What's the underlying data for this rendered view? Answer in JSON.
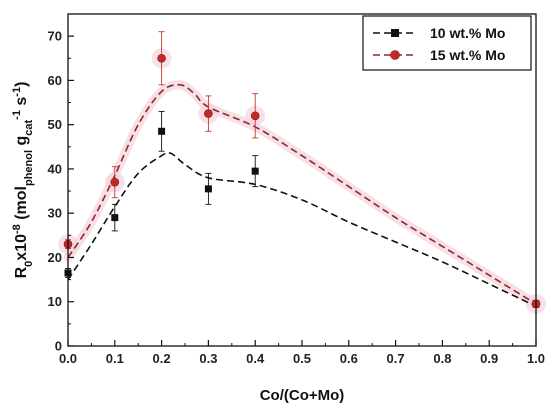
{
  "chart_data": {
    "type": "scatter",
    "xlabel": "Co/(Co+Mo)",
    "ylabel": {
      "parts": [
        {
          "text": "R",
          "shift": "base"
        },
        {
          "text": "0",
          "shift": "sub"
        },
        {
          "text": "x10",
          "shift": "base"
        },
        {
          "text": "-8",
          "shift": "sup"
        },
        {
          "text": " (mol",
          "shift": "base"
        },
        {
          "text": "phenol",
          "shift": "sub"
        },
        {
          "text": " g",
          "shift": "base"
        },
        {
          "text": "cat",
          "shift": "sub"
        },
        {
          "text": "-1",
          "shift": "sup"
        },
        {
          "text": " s",
          "shift": "base"
        },
        {
          "text": "-1",
          "shift": "sup"
        },
        {
          "text": ")",
          "shift": "base"
        }
      ]
    },
    "xlim": [
      0.0,
      1.0
    ],
    "ylim": [
      0,
      75
    ],
    "xticks": [
      0.0,
      0.1,
      0.2,
      0.3,
      0.4,
      0.5,
      0.6,
      0.7,
      0.8,
      0.9,
      1.0
    ],
    "yticks": [
      0,
      10,
      20,
      30,
      40,
      50,
      60,
      70
    ],
    "grid": false,
    "legend_position": "top-right",
    "series": [
      {
        "name": "10 wt.% Mo",
        "marker": "square",
        "color": "#111111",
        "line_color": "#111111",
        "points": [
          {
            "x": 0.0,
            "y": 16.5,
            "err": 1.0
          },
          {
            "x": 0.1,
            "y": 29.0,
            "err": 3.0
          },
          {
            "x": 0.2,
            "y": 48.5,
            "err": 4.5
          },
          {
            "x": 0.3,
            "y": 35.5,
            "err": 3.5
          },
          {
            "x": 0.4,
            "y": 39.5,
            "err": 3.5
          },
          {
            "x": 1.0,
            "y": 9.5,
            "err": 0.8
          }
        ],
        "trend": [
          [
            0.0,
            15.0
          ],
          [
            0.05,
            23.0
          ],
          [
            0.1,
            31.5
          ],
          [
            0.15,
            39.0
          ],
          [
            0.2,
            43.0
          ],
          [
            0.22,
            43.5
          ],
          [
            0.25,
            41.0
          ],
          [
            0.3,
            38.0
          ],
          [
            0.4,
            36.5
          ],
          [
            0.5,
            33.0
          ],
          [
            0.6,
            28.0
          ],
          [
            0.7,
            23.5
          ],
          [
            0.8,
            19.0
          ],
          [
            0.9,
            14.0
          ],
          [
            1.0,
            9.0
          ]
        ]
      },
      {
        "name": "15 wt.% Mo",
        "marker": "circle",
        "color": "#c62828",
        "line_color": "#8b2a2a",
        "points": [
          {
            "x": 0.0,
            "y": 23.0,
            "err": 1.0
          },
          {
            "x": 0.1,
            "y": 37.0,
            "err": 3.5
          },
          {
            "x": 0.2,
            "y": 65.0,
            "err": 6.0
          },
          {
            "x": 0.3,
            "y": 52.5,
            "err": 4.0
          },
          {
            "x": 0.4,
            "y": 52.0,
            "err": 5.0
          },
          {
            "x": 1.0,
            "y": 9.5,
            "err": 0.8
          }
        ],
        "trend": [
          [
            0.0,
            20.0
          ],
          [
            0.05,
            28.0
          ],
          [
            0.1,
            38.5
          ],
          [
            0.15,
            50.0
          ],
          [
            0.2,
            57.5
          ],
          [
            0.24,
            59.0
          ],
          [
            0.27,
            57.0
          ],
          [
            0.3,
            54.0
          ],
          [
            0.4,
            49.5
          ],
          [
            0.5,
            43.0
          ],
          [
            0.6,
            36.0
          ],
          [
            0.7,
            29.0
          ],
          [
            0.8,
            22.5
          ],
          [
            0.9,
            16.0
          ],
          [
            1.0,
            9.5
          ]
        ]
      }
    ]
  }
}
